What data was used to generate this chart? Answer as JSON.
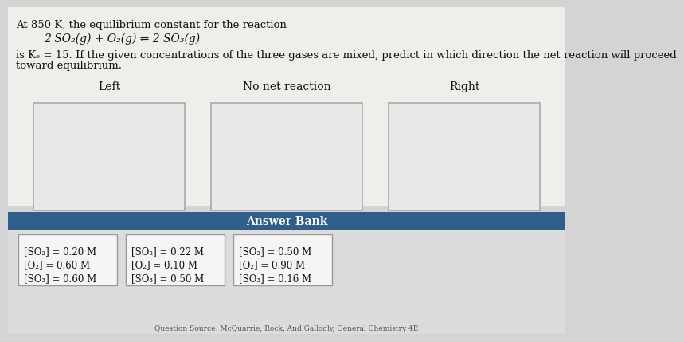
{
  "title_line1": "At 850 K, the equilibrium constant for the reaction",
  "equation": "2 SO₂(g) + O₂(g) ⇌ 2 SO₃(g)",
  "body_text": "is Kₑ = 15. If the given concentrations of the three gases are mixed, predict in which direction the net reaction will proceed\ntoward equilibrium.",
  "box_labels": [
    "Left",
    "No net reaction",
    "Right"
  ],
  "answer_bank_label": "Answer Bank",
  "answer_sets": [
    [
      "[SO₂] = 0.20 M",
      "[O₂] = 0.60 M",
      "[SO₃] = 0.60 M"
    ],
    [
      "[SO₂] = 0.22 M",
      "[O₂] = 0.10 M",
      "[SO₃] = 0.50 M"
    ],
    [
      "[SO₂] = 0.50 M",
      "[O₂] = 0.90 M",
      "[SO₃] = 0.16 M"
    ]
  ],
  "bg_color": "#d4d4d4",
  "box_fill_color": "#e8e8e8",
  "box_edge_color": "#aaaaaa",
  "answer_bank_bg": "#2e5f8a",
  "answer_bank_text_color": "#ffffff",
  "answer_set_box_color": "#cccccc",
  "answer_set_box_edge": "#999999",
  "text_color": "#111111",
  "font_size_body": 9.5,
  "font_size_equation": 10,
  "font_size_label": 10,
  "font_size_answer": 8.5
}
